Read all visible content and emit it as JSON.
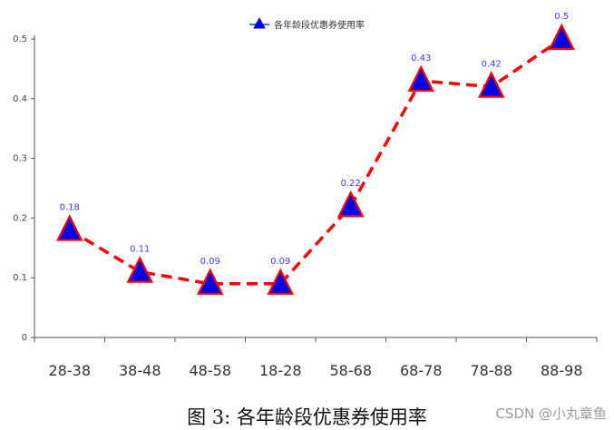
{
  "chart_data": {
    "type": "line",
    "categories": [
      "28-38",
      "38-48",
      "48-58",
      "18-28",
      "58-68",
      "68-78",
      "78-88",
      "88-98"
    ],
    "series": [
      {
        "name": "各年龄段优惠券使用率",
        "values": [
          0.18,
          0.11,
          0.09,
          0.09,
          0.22,
          0.43,
          0.42,
          0.5
        ]
      }
    ],
    "data_labels": [
      "0.18",
      "0.11",
      "0.09",
      "0.09",
      "0.22",
      "0.43",
      "0.42",
      "0.5"
    ],
    "ylim": [
      0,
      0.5
    ],
    "yticks": [
      "0",
      "0.1",
      "0.2",
      "0.3",
      "0.4",
      "0.5"
    ],
    "legend_position": "top-center",
    "grid": false,
    "line_style": "dashed",
    "marker": "triangle",
    "colors": {
      "line": "#ff0000",
      "marker_fill": "#0000e6",
      "marker_edge": "#ff0000",
      "label": "#3a3aff",
      "axis": "#555555"
    }
  },
  "caption": "图 3: 各年龄段优惠券使用率",
  "watermark": "CSDN @小丸章鱼"
}
